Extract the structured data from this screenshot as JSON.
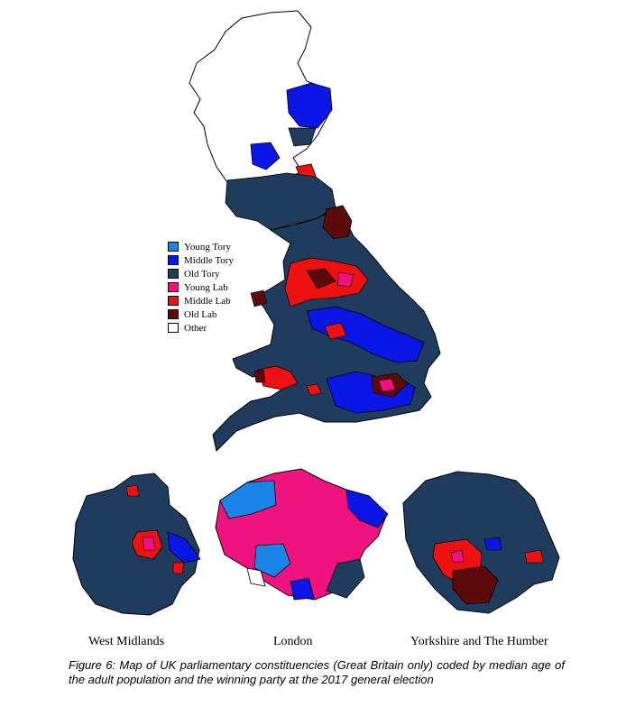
{
  "legend": {
    "items": [
      {
        "label": "Young Tory",
        "color": "#1a84e8"
      },
      {
        "label": "Middle Tory",
        "color": "#0a16e6"
      },
      {
        "label": "Old Tory",
        "color": "#1f3c5e"
      },
      {
        "label": "Young Lab",
        "color": "#f0137f"
      },
      {
        "label": "Middle Lab",
        "color": "#ee1111"
      },
      {
        "label": "Old Lab",
        "color": "#5c0a0a"
      },
      {
        "label": "Other",
        "color": "#ffffff"
      }
    ]
  },
  "insets": {
    "west_midlands": "West Midlands",
    "london": "London",
    "yorkshire": "Yorkshire and The Humber"
  },
  "caption": "Figure 6: Map of UK parliamentary constituencies (Great Britain only) coded by median age of the adult population and the winning party at the 2017 general election"
}
